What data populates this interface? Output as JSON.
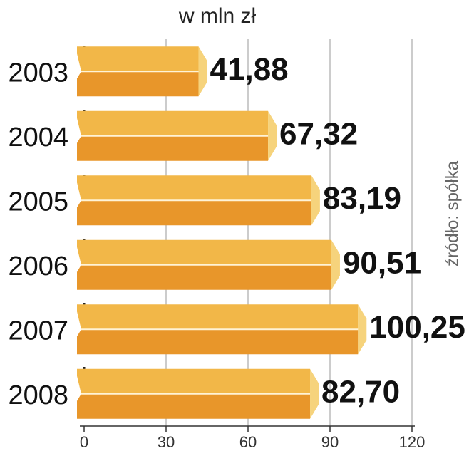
{
  "chart_data": {
    "type": "bar",
    "orientation": "horizontal",
    "title": "w mln zł",
    "source": "źródło: spółka",
    "categories": [
      "2003",
      "2004",
      "2005",
      "2006",
      "2007",
      "2008"
    ],
    "values": [
      41.88,
      67.32,
      83.19,
      90.51,
      100.25,
      82.7
    ],
    "value_labels": [
      "41,88",
      "67,32",
      "83,19",
      "90,51",
      "100,25",
      "82,70"
    ],
    "color": "#e8962a",
    "xlim": [
      0,
      120
    ],
    "xticks": [
      0,
      30,
      60,
      90,
      120
    ],
    "grid": true
  }
}
